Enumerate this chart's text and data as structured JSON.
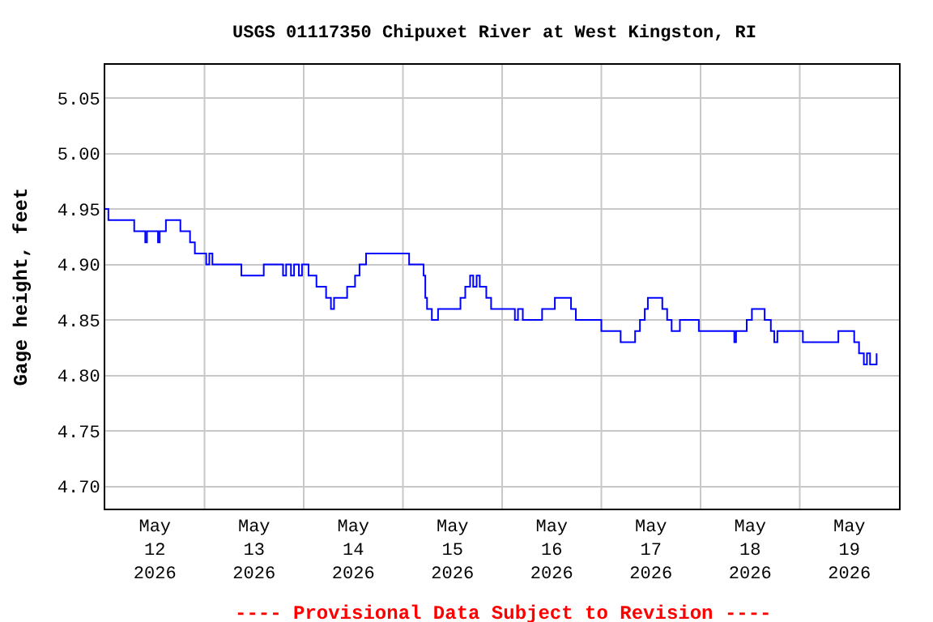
{
  "chart_data": {
    "type": "step",
    "title": "USGS 01117350 Chipuxet River at West Kingston, RI",
    "ylabel": "Gage height, feet",
    "annotations": [
      "---- Provisional Data Subject to Revision ----"
    ],
    "x": [
      "2026-05-12T00:00",
      "2026-05-12T00:45",
      "2026-05-12T07:00",
      "2026-05-12T09:40",
      "2026-05-12T10:05",
      "2026-05-12T12:45",
      "2026-05-12T13:10",
      "2026-05-12T14:40",
      "2026-05-12T18:10",
      "2026-05-12T20:30",
      "2026-05-12T21:40",
      "2026-05-13T00:25",
      "2026-05-13T01:10",
      "2026-05-13T01:55",
      "2026-05-13T08:55",
      "2026-05-13T14:20",
      "2026-05-13T19:00",
      "2026-05-13T19:45",
      "2026-05-13T20:55",
      "2026-05-13T21:40",
      "2026-05-13T22:50",
      "2026-05-13T23:35",
      "2026-05-14T01:10",
      "2026-05-14T03:05",
      "2026-05-14T05:25",
      "2026-05-14T06:35",
      "2026-05-14T07:20",
      "2026-05-14T10:30",
      "2026-05-14T12:25",
      "2026-05-14T13:30",
      "2026-05-14T15:05",
      "2026-05-15T01:30",
      "2026-05-15T05:00",
      "2026-05-15T05:25",
      "2026-05-15T05:50",
      "2026-05-15T07:00",
      "2026-05-15T08:30",
      "2026-05-15T13:55",
      "2026-05-15T15:05",
      "2026-05-15T16:15",
      "2026-05-15T17:00",
      "2026-05-15T17:50",
      "2026-05-15T18:35",
      "2026-05-15T20:10",
      "2026-05-15T21:20",
      "2026-05-16T03:05",
      "2026-05-16T03:50",
      "2026-05-16T05:00",
      "2026-05-16T09:40",
      "2026-05-16T12:45",
      "2026-05-16T16:40",
      "2026-05-16T17:50",
      "2026-05-17T00:00",
      "2026-05-17T04:40",
      "2026-05-17T08:10",
      "2026-05-17T09:20",
      "2026-05-17T10:30",
      "2026-05-17T11:15",
      "2026-05-17T14:45",
      "2026-05-17T15:55",
      "2026-05-17T17:00",
      "2026-05-17T19:00",
      "2026-05-17T21:20",
      "2026-05-17T23:35",
      "2026-05-18T08:10",
      "2026-05-18T08:35",
      "2026-05-18T11:10",
      "2026-05-18T12:25",
      "2026-05-18T15:30",
      "2026-05-18T17:00",
      "2026-05-18T17:50",
      "2026-05-18T18:35",
      "2026-05-19T00:45",
      "2026-05-19T09:20",
      "2026-05-19T13:10",
      "2026-05-19T14:20",
      "2026-05-19T15:30",
      "2026-05-19T16:15",
      "2026-05-19T17:00",
      "2026-05-19T18:35"
    ],
    "series": [
      {
        "color": "#0000ff",
        "values": [
          4.95,
          4.94,
          4.93,
          4.92,
          4.93,
          4.92,
          4.93,
          4.94,
          4.93,
          4.92,
          4.91,
          4.9,
          4.91,
          4.9,
          4.89,
          4.9,
          4.89,
          4.9,
          4.89,
          4.9,
          4.89,
          4.9,
          4.89,
          4.88,
          4.87,
          4.86,
          4.87,
          4.88,
          4.89,
          4.9,
          4.91,
          4.9,
          4.89,
          4.87,
          4.86,
          4.85,
          4.86,
          4.87,
          4.88,
          4.89,
          4.88,
          4.89,
          4.88,
          4.87,
          4.86,
          4.85,
          4.86,
          4.85,
          4.86,
          4.87,
          4.86,
          4.85,
          4.84,
          4.83,
          4.84,
          4.85,
          4.86,
          4.87,
          4.86,
          4.85,
          4.84,
          4.85,
          4.85,
          4.84,
          4.83,
          4.84,
          4.85,
          4.86,
          4.85,
          4.84,
          4.83,
          4.84,
          4.83,
          4.84,
          4.83,
          4.82,
          4.81,
          4.82,
          4.81,
          4.82
        ]
      }
    ],
    "xlim": [
      "2026-05-12T00:00",
      "2026-05-20T00:00"
    ],
    "xticks": [
      {
        "value": "2026-05-12T12:00",
        "label": "May\n12\n2026"
      },
      {
        "value": "2026-05-13T12:00",
        "label": "May\n13\n2026"
      },
      {
        "value": "2026-05-14T12:00",
        "label": "May\n14\n2026"
      },
      {
        "value": "2026-05-15T12:00",
        "label": "May\n15\n2026"
      },
      {
        "value": "2026-05-16T12:00",
        "label": "May\n16\n2026"
      },
      {
        "value": "2026-05-17T12:00",
        "label": "May\n17\n2026"
      },
      {
        "value": "2026-05-18T12:00",
        "label": "May\n18\n2026"
      },
      {
        "value": "2026-05-19T12:00",
        "label": "May\n19\n2026"
      },
      {
        "value": "2026-05-13T00:00",
        "label": null
      },
      {
        "value": "2026-05-14T00:00",
        "label": null
      },
      {
        "value": "2026-05-15T00:00",
        "label": null
      },
      {
        "value": "2026-05-16T00:00",
        "label": null
      },
      {
        "value": "2026-05-17T00:00",
        "label": null
      },
      {
        "value": "2026-05-18T00:00",
        "label": null
      },
      {
        "value": "2026-05-19T00:00",
        "label": null
      }
    ],
    "ylim": [
      4.68,
      5.08
    ],
    "yticks": [
      {
        "value": 4.7,
        "label": "4.70"
      },
      {
        "value": 4.75,
        "label": "4.75"
      },
      {
        "value": 4.8,
        "label": "4.80"
      },
      {
        "value": 4.85,
        "label": "4.85"
      },
      {
        "value": 4.9,
        "label": "4.90"
      },
      {
        "value": 4.95,
        "label": "4.95"
      },
      {
        "value": 5.0,
        "label": "5.00"
      },
      {
        "value": 5.05,
        "label": "5.05"
      }
    ],
    "grid": true
  }
}
